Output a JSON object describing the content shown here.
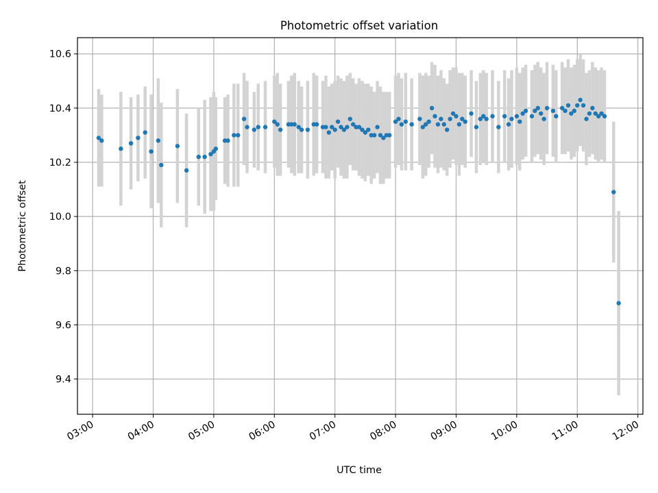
{
  "chart_data": {
    "type": "scatter",
    "title": "Photometric offset variation",
    "xlabel": "UTC time",
    "ylabel": "Photometric offset",
    "x_unit": "UTC hours",
    "xlim": [
      "02:45",
      "12:05"
    ],
    "ylim": [
      9.27,
      10.66
    ],
    "grid": true,
    "x_ticks": [
      "03:00",
      "04:00",
      "05:00",
      "06:00",
      "07:00",
      "08:00",
      "09:00",
      "10:00",
      "11:00",
      "12:00"
    ],
    "y_ticks": [
      "9.4",
      "9.6",
      "9.8",
      "10.0",
      "10.2",
      "10.4",
      "10.6"
    ],
    "series": [
      {
        "color": "#1f77b4",
        "errorbar_color": "#d3d3d3",
        "x": [
          "03:06",
          "03:09",
          "03:28",
          "03:38",
          "03:45",
          "03:52",
          "03:58",
          "04:05",
          "04:08",
          "04:24",
          "04:33",
          "04:45",
          "04:51",
          "04:57",
          "05:00",
          "05:02",
          "05:11",
          "05:14",
          "05:20",
          "05:24",
          "05:30",
          "05:33",
          "05:40",
          "05:44",
          "05:51",
          "06:00",
          "06:03",
          "06:06",
          "06:14",
          "06:17",
          "06:20",
          "06:24",
          "06:27",
          "06:33",
          "06:39",
          "06:42",
          "06:48",
          "06:51",
          "06:54",
          "06:57",
          "07:00",
          "07:03",
          "07:06",
          "07:09",
          "07:12",
          "07:15",
          "07:18",
          "07:21",
          "07:24",
          "07:27",
          "07:30",
          "07:33",
          "07:36",
          "07:39",
          "07:42",
          "07:45",
          "07:48",
          "07:51",
          "07:54",
          "08:00",
          "08:03",
          "08:06",
          "08:10",
          "08:16",
          "08:24",
          "08:27",
          "08:30",
          "08:33",
          "08:36",
          "08:39",
          "08:42",
          "08:45",
          "08:48",
          "08:51",
          "08:54",
          "08:57",
          "09:00",
          "09:03",
          "09:06",
          "09:09",
          "09:15",
          "09:20",
          "09:24",
          "09:27",
          "09:30",
          "09:36",
          "09:42",
          "09:48",
          "09:52",
          "09:55",
          "10:00",
          "10:03",
          "10:06",
          "10:09",
          "10:15",
          "10:18",
          "10:21",
          "10:24",
          "10:27",
          "10:30",
          "10:36",
          "10:39",
          "10:45",
          "10:48",
          "10:51",
          "10:54",
          "10:57",
          "11:00",
          "11:03",
          "11:06",
          "11:09",
          "11:12",
          "11:15",
          "11:18",
          "11:21",
          "11:24",
          "11:27",
          "11:36",
          "11:41"
        ],
        "y": [
          10.29,
          10.28,
          10.25,
          10.27,
          10.29,
          10.31,
          10.24,
          10.28,
          10.19,
          10.26,
          10.17,
          10.22,
          10.22,
          10.23,
          10.24,
          10.25,
          10.28,
          10.28,
          10.3,
          10.3,
          10.36,
          10.33,
          10.32,
          10.33,
          10.33,
          10.35,
          10.34,
          10.32,
          10.34,
          10.34,
          10.34,
          10.33,
          10.32,
          10.32,
          10.34,
          10.34,
          10.33,
          10.33,
          10.31,
          10.33,
          10.32,
          10.35,
          10.33,
          10.32,
          10.33,
          10.36,
          10.34,
          10.33,
          10.33,
          10.32,
          10.31,
          10.32,
          10.3,
          10.3,
          10.33,
          10.3,
          10.29,
          10.3,
          10.3,
          10.35,
          10.36,
          10.34,
          10.35,
          10.34,
          10.36,
          10.33,
          10.34,
          10.35,
          10.4,
          10.37,
          10.34,
          10.36,
          10.34,
          10.32,
          10.36,
          10.38,
          10.37,
          10.34,
          10.36,
          10.35,
          10.38,
          10.33,
          10.36,
          10.37,
          10.36,
          10.37,
          10.33,
          10.37,
          10.34,
          10.36,
          10.37,
          10.35,
          10.38,
          10.39,
          10.37,
          10.39,
          10.4,
          10.38,
          10.36,
          10.4,
          10.39,
          10.37,
          10.4,
          10.39,
          10.41,
          10.38,
          10.39,
          10.41,
          10.43,
          10.41,
          10.36,
          10.38,
          10.4,
          10.38,
          10.37,
          10.38,
          10.37,
          10.09,
          9.68
        ],
        "err": [
          0.18,
          0.17,
          0.21,
          0.17,
          0.16,
          0.17,
          0.21,
          0.23,
          0.23,
          0.21,
          0.21,
          0.18,
          0.21,
          0.21,
          0.22,
          0.19,
          0.16,
          0.17,
          0.19,
          0.19,
          0.17,
          0.17,
          0.14,
          0.16,
          0.17,
          0.17,
          0.19,
          0.17,
          0.16,
          0.18,
          0.19,
          0.17,
          0.16,
          0.18,
          0.19,
          0.18,
          0.17,
          0.19,
          0.17,
          0.16,
          0.18,
          0.17,
          0.18,
          0.18,
          0.19,
          0.17,
          0.17,
          0.16,
          0.18,
          0.18,
          0.18,
          0.17,
          0.18,
          0.16,
          0.17,
          0.18,
          0.17,
          0.16,
          0.16,
          0.17,
          0.17,
          0.17,
          0.18,
          0.17,
          0.17,
          0.19,
          0.19,
          0.17,
          0.17,
          0.19,
          0.18,
          0.18,
          0.17,
          0.17,
          0.18,
          0.17,
          0.18,
          0.19,
          0.17,
          0.17,
          0.16,
          0.17,
          0.17,
          0.17,
          0.17,
          0.17,
          0.17,
          0.17,
          0.17,
          0.18,
          0.18,
          0.18,
          0.17,
          0.17,
          0.17,
          0.17,
          0.17,
          0.17,
          0.17,
          0.17,
          0.17,
          0.17,
          0.17,
          0.16,
          0.17,
          0.17,
          0.17,
          0.17,
          0.17,
          0.17,
          0.17,
          0.16,
          0.17,
          0.17,
          0.17,
          0.17,
          0.17,
          0.26,
          0.34
        ]
      }
    ]
  }
}
